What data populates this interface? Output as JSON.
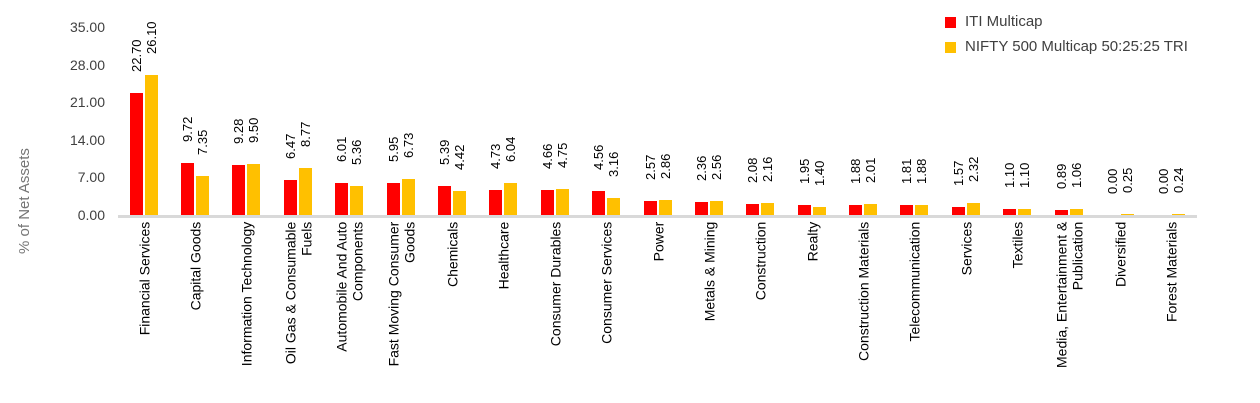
{
  "chart_data": {
    "type": "bar",
    "title": "",
    "xlabel": "",
    "ylabel": "% of Net Assets",
    "ylim": [
      0,
      35
    ],
    "yticks": [
      0,
      7,
      14,
      21,
      28,
      35
    ],
    "ytick_labels": [
      "0.00",
      "7.00",
      "14.00",
      "21.00",
      "28.00",
      "35.00"
    ],
    "grid": false,
    "legend_position": "top-right",
    "value_labels": true,
    "value_label_format": "two-decimals",
    "label_rotation_degrees": 90,
    "categories": [
      "Financial Services",
      "Capital Goods",
      "Information Technology",
      "Oil Gas & Consumable\nFuels",
      "Automobile And Auto\nComponents",
      "Fast Moving Consumer\nGoods",
      "Chemicals",
      "Healthcare",
      "Consumer Durables",
      "Consumer Services",
      "Power",
      "Metals & Mining",
      "Construction",
      "Realty",
      "Construction Materials",
      "Telecommunication",
      "Services",
      "Textiles",
      "Media, Entertainment &\nPublication",
      "Diversified",
      "Forest Materials"
    ],
    "series": [
      {
        "name": "ITI Multicap",
        "color": "#FF0000",
        "values": [
          22.7,
          9.72,
          9.28,
          6.47,
          6.01,
          5.95,
          5.39,
          4.73,
          4.66,
          4.56,
          2.57,
          2.36,
          2.08,
          1.95,
          1.88,
          1.81,
          1.57,
          1.1,
          0.89,
          0.0,
          0.0
        ]
      },
      {
        "name": "NIFTY 500 Multicap 50:25:25 TRI",
        "color": "#FFC000",
        "values": [
          26.1,
          7.35,
          9.5,
          8.77,
          5.36,
          6.73,
          4.42,
          6.04,
          4.75,
          3.16,
          2.86,
          2.56,
          2.16,
          1.4,
          2.01,
          1.88,
          2.32,
          1.1,
          1.06,
          0.25,
          0.24
        ]
      }
    ]
  },
  "colors": {
    "background": "#FFFFFF",
    "axis_line": "#D9D9D9",
    "tick_text": "#404040",
    "axis_title_text": "#757575",
    "value_label_text": "#000000",
    "category_text": "#000000",
    "legend_text": "#404040"
  }
}
